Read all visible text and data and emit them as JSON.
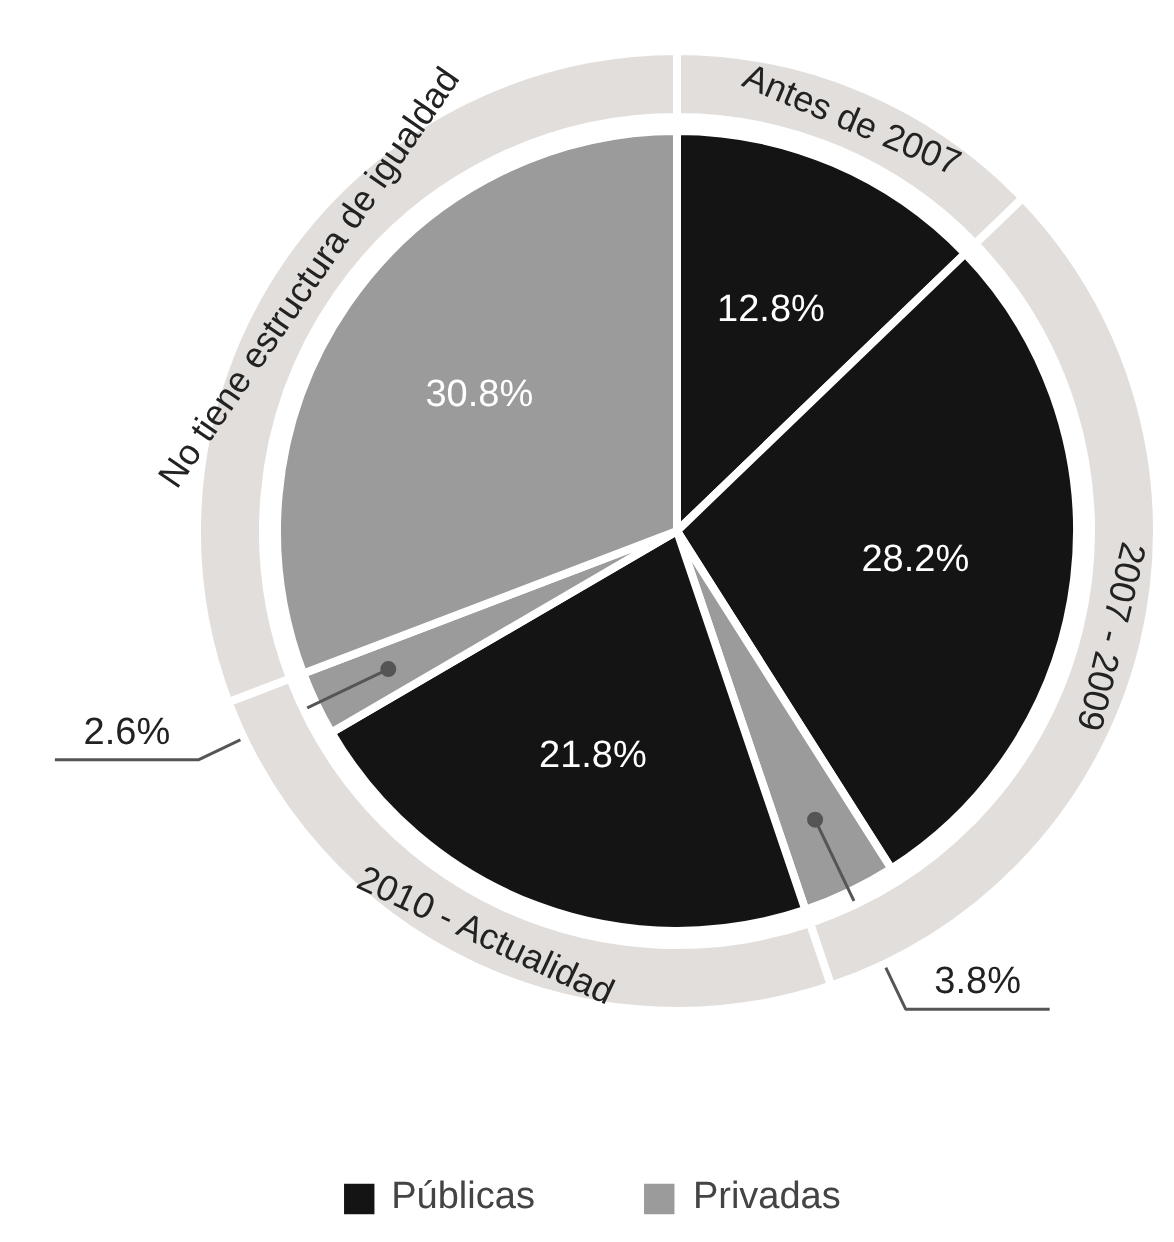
{
  "chart_data": {
    "type": "pie",
    "legend": "bottom",
    "categories": [
      "Públicas",
      null,
      "Privadas",
      null,
      null,
      null
    ],
    "annotations": [
      "Antes de 2007",
      "2007 - 2009",
      "2010 - Actualidad",
      "No tiene estructura de igualdad"
    ],
    "series": [
      {
        "values": [
          12.8,
          28.2,
          3.8,
          21.8,
          2.6,
          30.8
        ],
        "colors": [
          "#141414",
          "#141414",
          "#9b9b9b",
          "#141414",
          "#9b9b9b",
          "#9b9b9b"
        ],
        "value_labels": [
          "12.8%",
          "28.2%",
          "3.8%",
          "21.8%",
          "2.6%",
          "30.8%"
        ]
      },
      {
        "values": [
          12.8,
          32.0,
          null,
          24.4,
          null,
          30.8
        ],
        "colors": [
          "#e2dedb",
          "#e2dedb",
          null,
          "#e2dedb",
          null,
          "#e2dedb"
        ]
      }
    ]
  }
}
